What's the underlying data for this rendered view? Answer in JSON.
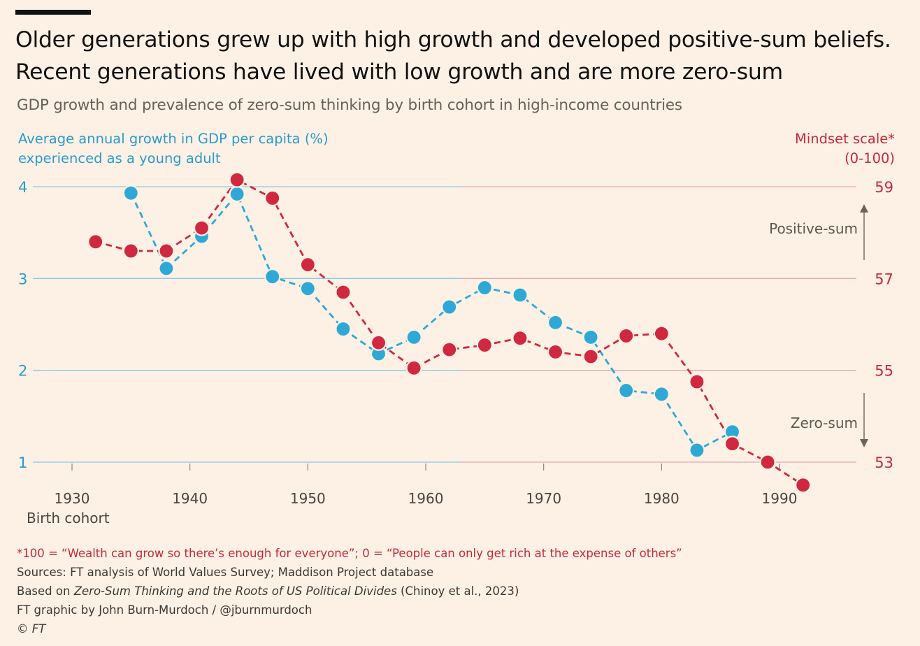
{
  "title": "Older generations grew up with high growth and developed positive-sum beliefs. Recent generations have lived with low growth and are more zero-sum",
  "subtitle": "GDP growth and prevalence of zero-sum thinking by birth cohort in high-income countries",
  "left_axis_title": "Average annual growth in GDP per capita (%)\nexperienced as a young adult",
  "right_axis_title": "Mindset scale*\n(0-100)",
  "x_axis_label": "Birth cohort",
  "annotations": {
    "positive": "Positive-sum",
    "zero": "Zero-sum"
  },
  "footer": {
    "footnote": "*100 = “Wealth can grow so there’s enough for everyone”; 0 = “People can only get rich at the expense of others”",
    "sources": "Sources: FT analysis of World Values Survey; Maddison Project database",
    "based_on_prefix": "Based on ",
    "based_on_title": "Zero-Sum Thinking and the Roots of US Political Divides",
    "based_on_suffix": " (Chinoy et al., 2023)",
    "credit": "FT graphic by John Burn-Murdoch / @jburnmurdoch",
    "copyright": "© FT"
  },
  "colors": {
    "gdp": "#2ea9d6",
    "mindset": "#d0283f",
    "left_axis": "#2a9bd0",
    "right_axis": "#c8283d",
    "background": "#fdf1e5"
  },
  "chart_data": {
    "type": "line",
    "x_label": "Birth cohort",
    "x_ticks": [
      1930,
      1940,
      1950,
      1960,
      1970,
      1980,
      1990
    ],
    "xlim": [
      1926,
      1998
    ],
    "y_left": {
      "label": "Average annual growth in GDP per capita (%) experienced as a young adult",
      "ticks": [
        1,
        2,
        3,
        4
      ],
      "range": [
        1,
        4
      ]
    },
    "y_right": {
      "label": "Mindset scale* (0-100)",
      "ticks": [
        53,
        55,
        57,
        59
      ],
      "range": [
        53,
        59
      ]
    },
    "series": [
      {
        "name": "GDP growth (%)",
        "axis": "left",
        "x": [
          1935,
          1938,
          1941,
          1944,
          1947,
          1950,
          1953,
          1956,
          1959,
          1962,
          1965,
          1968,
          1971,
          1974,
          1977,
          1980,
          1983,
          1986
        ],
        "values": [
          3.93,
          3.11,
          3.46,
          3.92,
          3.02,
          2.89,
          2.45,
          2.18,
          2.36,
          2.69,
          2.9,
          2.82,
          2.52,
          2.36,
          1.78,
          1.74,
          1.13,
          1.33
        ]
      },
      {
        "name": "Mindset scale",
        "axis": "right",
        "x": [
          1932,
          1935,
          1938,
          1941,
          1944,
          1947,
          1950,
          1953,
          1956,
          1959,
          1962,
          1965,
          1968,
          1971,
          1974,
          1977,
          1980,
          1983,
          1986,
          1989,
          1992
        ],
        "values": [
          57.8,
          57.6,
          57.6,
          58.1,
          59.15,
          58.75,
          57.3,
          56.7,
          55.6,
          55.05,
          55.45,
          55.55,
          55.7,
          55.4,
          55.3,
          55.75,
          55.8,
          54.75,
          53.4,
          53.0,
          52.5
        ]
      }
    ]
  }
}
